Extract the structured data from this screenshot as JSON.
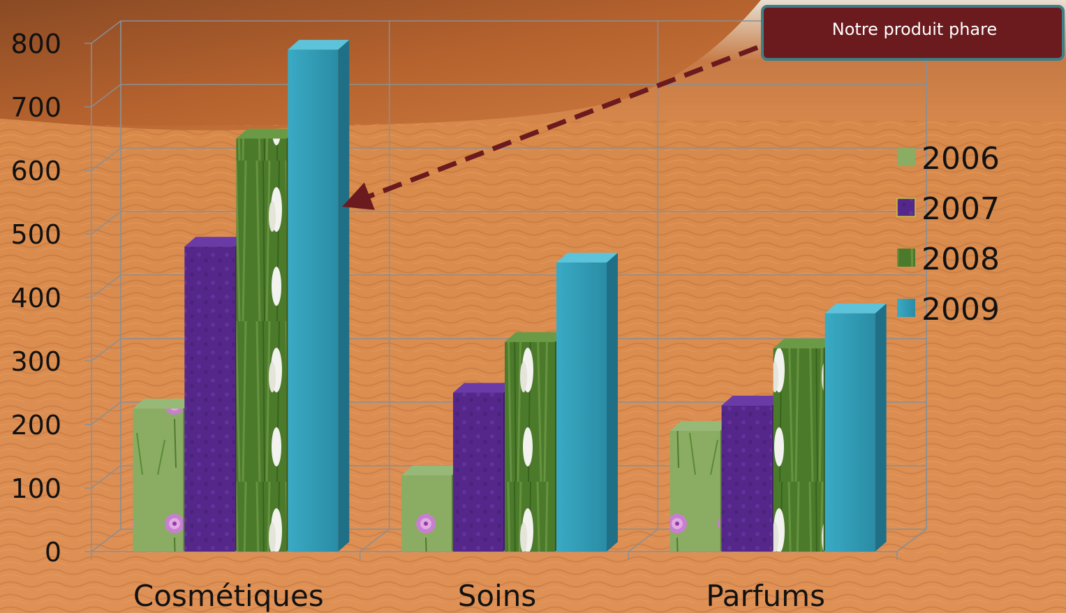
{
  "chart_data": {
    "type": "bar",
    "categories": [
      "Cosmétiques",
      "Soins",
      "Parfums"
    ],
    "series": [
      {
        "name": "2006",
        "values": [
          225,
          120,
          190
        ],
        "color": "#7ea25a",
        "pattern": "flower-pink"
      },
      {
        "name": "2007",
        "values": [
          480,
          250,
          230
        ],
        "color": "#5a2d91",
        "pattern": "violet"
      },
      {
        "name": "2008",
        "values": [
          650,
          330,
          320
        ],
        "color": "#4a7d2c",
        "pattern": "flower-white"
      },
      {
        "name": "2009",
        "values": [
          790,
          455,
          375
        ],
        "color": "#2e9bb5",
        "pattern": "solid"
      }
    ],
    "ylim": [
      0,
      800
    ],
    "yticks": [
      0,
      100,
      200,
      300,
      400,
      500,
      600,
      700,
      800
    ],
    "grid": true,
    "legend": "right",
    "title": "",
    "xlabel": "",
    "ylabel": ""
  },
  "callout": {
    "text": "Notre produit phare",
    "fill": "#6b1a1e",
    "border": "#3f7e86",
    "arrow_color": "#6b1a1e"
  },
  "background": {
    "description_icon": "desert-dunes",
    "sand": "#d9864a",
    "sky": "#eae6df"
  }
}
